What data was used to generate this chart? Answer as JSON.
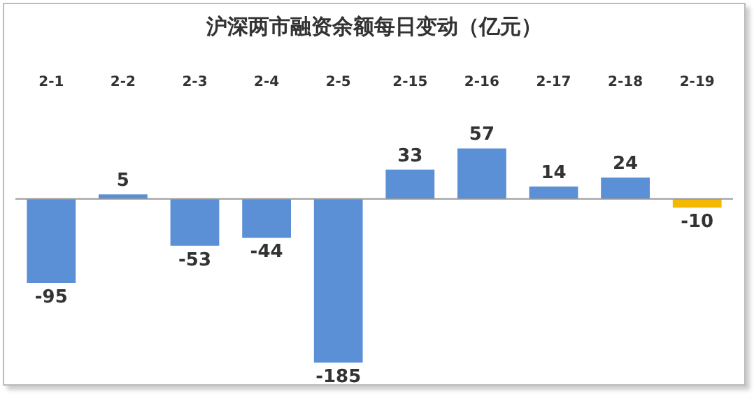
{
  "chart_data": {
    "type": "bar",
    "title": "沪深两市融资余额每日变动（亿元）",
    "categories": [
      "2-1",
      "2-2",
      "2-3",
      "2-4",
      "2-5",
      "2-15",
      "2-16",
      "2-17",
      "2-18",
      "2-19"
    ],
    "values": [
      -95,
      5,
      -53,
      -44,
      -185,
      33,
      57,
      14,
      24,
      -10
    ],
    "colors": [
      "#5b8fd6",
      "#5b8fd6",
      "#5b8fd6",
      "#5b8fd6",
      "#5b8fd6",
      "#5b8fd6",
      "#5b8fd6",
      "#5b8fd6",
      "#5b8fd6",
      "#f5b800"
    ],
    "data_labels": true,
    "grid": false,
    "legend": false
  }
}
